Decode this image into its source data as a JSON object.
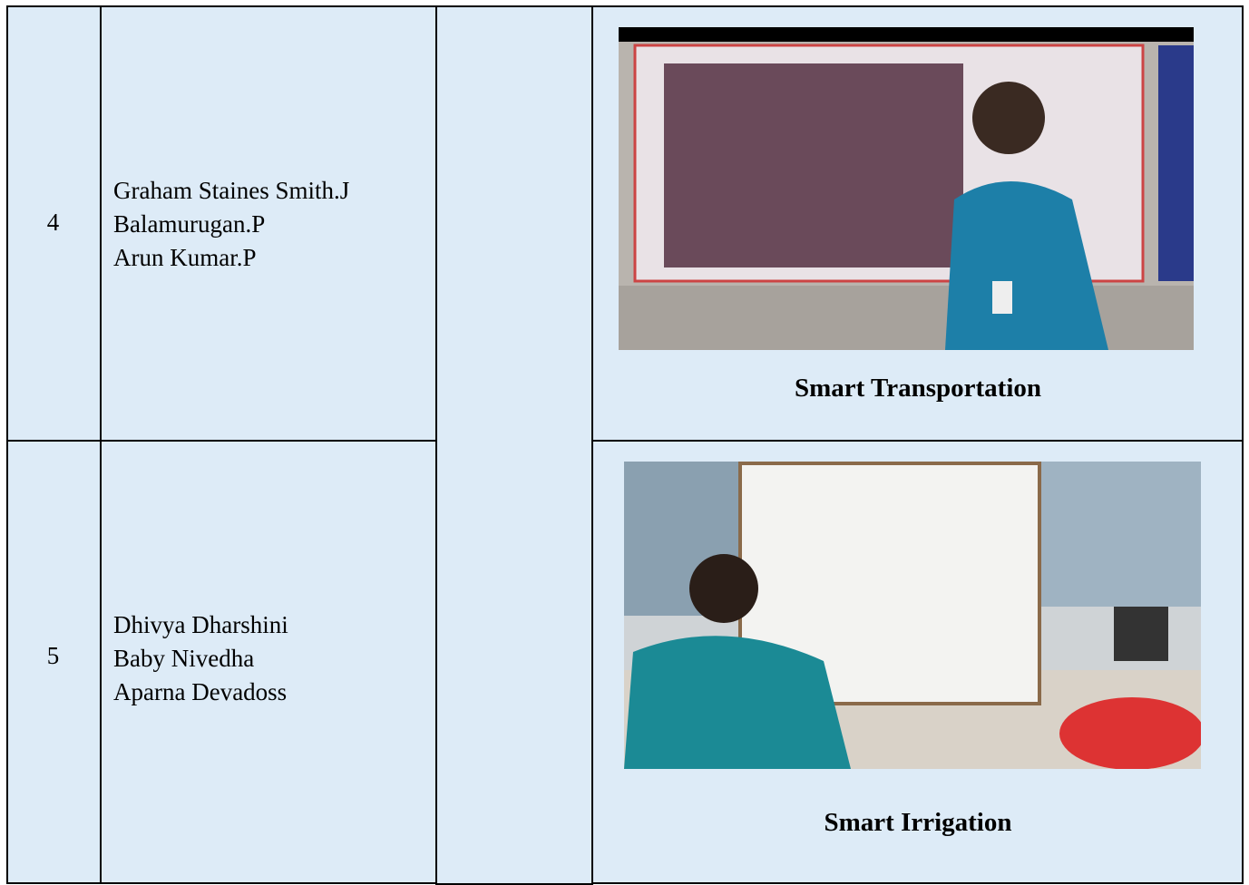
{
  "table": {
    "rows": [
      {
        "number": "4",
        "members": [
          "Graham Staines Smith.J",
          "Balamurugan.P",
          "Arun Kumar.P"
        ],
        "caption": "Smart Transportation"
      },
      {
        "number": "5",
        "members": [
          "Dhivya Dharshini",
          "Baby Nivedha",
          "Aparna Devadoss"
        ],
        "caption": "Smart Irrigation"
      }
    ]
  }
}
